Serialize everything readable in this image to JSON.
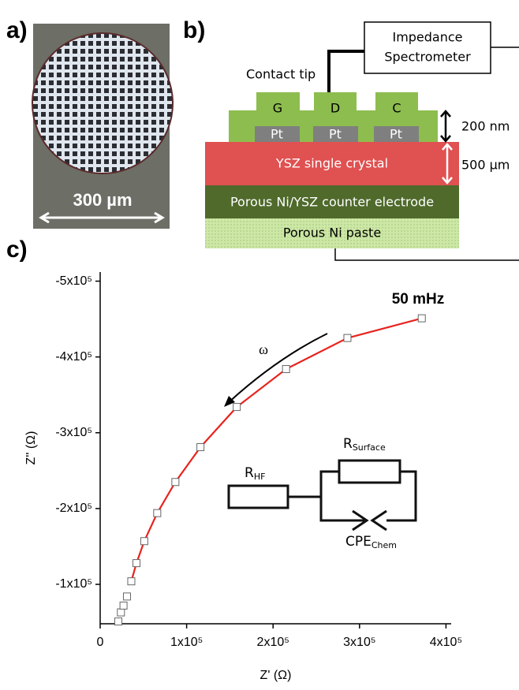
{
  "panels": {
    "a": {
      "label": "a)",
      "scale_bar": "300 µm"
    },
    "b": {
      "label": "b)",
      "spectrometer": [
        "Impedance",
        "Spectrometer"
      ],
      "contact_tip": "Contact tip",
      "electrodes": [
        "G",
        "D",
        "C"
      ],
      "pt": [
        "Pt",
        "Pt",
        "Pt"
      ],
      "layers": [
        "YSZ single crystal",
        "Porous Ni/YSZ counter electrode",
        "Porous Ni paste"
      ],
      "thickness": [
        "200 nm",
        "500 µm"
      ]
    },
    "c": {
      "label": "c)"
    }
  },
  "chart_data": {
    "type": "scatter",
    "xlabel": "Z' (Ω)",
    "ylabel": "Z'' (Ω)",
    "xlim": [
      0,
      406000
    ],
    "ylim": [
      -48000,
      -512000
    ],
    "xticks": [
      0,
      {
        "value": 100000,
        "label": "1x10⁵"
      },
      {
        "value": 200000,
        "label": "2x10⁵"
      },
      {
        "value": 300000,
        "label": "3x10⁵"
      },
      {
        "value": 400000,
        "label": "4x10⁵"
      }
    ],
    "yticks": [
      {
        "value": -100000,
        "label": "-1x10⁵"
      },
      {
        "value": -200000,
        "label": "-2x10⁵"
      },
      {
        "value": -300000,
        "label": "-3x10⁵"
      },
      {
        "value": -400000,
        "label": "-4x10⁵"
      },
      {
        "value": -500000,
        "label": "-5x10⁵"
      }
    ],
    "series": [
      {
        "style": "line",
        "color": "#e8231e",
        "x": [
          36000,
          42000,
          51000,
          66000,
          87000,
          116000,
          158000,
          215000,
          286000,
          372000
        ],
        "values": [
          -104000,
          -128000,
          -157000,
          -194000,
          -235000,
          -281000,
          -334000,
          -384000,
          -425000,
          -451000
        ]
      },
      {
        "style": "square",
        "color": "#ffffff",
        "x": [
          21000,
          24000,
          27000,
          31000,
          36000,
          42000,
          51000,
          66000,
          87000,
          116000,
          158000,
          215000,
          286000,
          372000
        ],
        "values": [
          -51000,
          -63000,
          -72000,
          -84000,
          -104000,
          -128000,
          -157000,
          -194000,
          -235000,
          -281000,
          -334000,
          -384000,
          -425000,
          -451000
        ]
      }
    ],
    "annotations": [
      "50 mHz",
      "ω"
    ],
    "circuit": {
      "r_hf": {
        "main": "R",
        "sub": "HF"
      },
      "r_surface": {
        "main": "R",
        "sub": "Surface"
      },
      "cpe": {
        "main": "CPE",
        "sub": "Chem"
      }
    }
  }
}
